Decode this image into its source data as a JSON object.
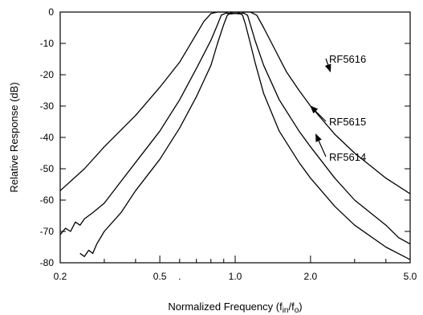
{
  "chart_data": {
    "type": "line",
    "title": "",
    "xlabel": "Normalized Frequency (f",
    "xlabel_sub1": "in",
    "xlabel_mid": "/f",
    "xlabel_sub2": "o",
    "xlabel_end": ")",
    "ylabel": "Relative Response (dB)",
    "x_scale": "log",
    "xlim": [
      0.2,
      5.0
    ],
    "ylim": [
      -80,
      0
    ],
    "grid": false,
    "x_ticks": [
      {
        "value": 0.2,
        "label": "0.2"
      },
      {
        "value": 0.5,
        "label": "0.5"
      },
      {
        "value": 1.0,
        "label": "1.0"
      },
      {
        "value": 2.0,
        "label": "2.0"
      },
      {
        "value": 5.0,
        "label": "5.0"
      }
    ],
    "x_minor_ticks": [
      0.3,
      0.4,
      0.6,
      0.7,
      0.8,
      0.9,
      3,
      4
    ],
    "stray_dot_label": ".",
    "y_ticks": [
      {
        "value": 0,
        "label": "0"
      },
      {
        "value": -10,
        "label": "-10"
      },
      {
        "value": -20,
        "label": "-20"
      },
      {
        "value": -30,
        "label": "-30"
      },
      {
        "value": -40,
        "label": "-40"
      },
      {
        "value": -50,
        "label": "-50"
      },
      {
        "value": -60,
        "label": "-60"
      },
      {
        "value": -70,
        "label": "-70"
      },
      {
        "value": -80,
        "label": "-80"
      }
    ],
    "series": [
      {
        "name": "RF5616",
        "points": [
          [
            0.2,
            -57
          ],
          [
            0.25,
            -50
          ],
          [
            0.3,
            -43
          ],
          [
            0.4,
            -33
          ],
          [
            0.5,
            -24
          ],
          [
            0.6,
            -16
          ],
          [
            0.7,
            -7
          ],
          [
            0.75,
            -3
          ],
          [
            0.8,
            -0.5
          ],
          [
            0.85,
            0
          ],
          [
            1.0,
            0
          ],
          [
            1.15,
            0
          ],
          [
            1.22,
            -1
          ],
          [
            1.3,
            -5
          ],
          [
            1.4,
            -10
          ],
          [
            1.6,
            -19
          ],
          [
            1.8,
            -25
          ],
          [
            2.0,
            -30
          ],
          [
            2.5,
            -39
          ],
          [
            3.0,
            -45
          ],
          [
            4.0,
            -53
          ],
          [
            5.0,
            -58
          ]
        ]
      },
      {
        "name": "RF5615",
        "points": [
          [
            0.2,
            -71
          ],
          [
            0.21,
            -69
          ],
          [
            0.22,
            -70
          ],
          [
            0.23,
            -67
          ],
          [
            0.24,
            -68
          ],
          [
            0.25,
            -66
          ],
          [
            0.27,
            -64
          ],
          [
            0.3,
            -61
          ],
          [
            0.35,
            -54
          ],
          [
            0.4,
            -48
          ],
          [
            0.5,
            -38
          ],
          [
            0.6,
            -28
          ],
          [
            0.7,
            -18
          ],
          [
            0.8,
            -9
          ],
          [
            0.85,
            -4
          ],
          [
            0.88,
            -1
          ],
          [
            0.92,
            -0.3
          ],
          [
            0.96,
            -0.6
          ],
          [
            1.0,
            -0.4
          ],
          [
            1.04,
            -0.6
          ],
          [
            1.08,
            -0.3
          ],
          [
            1.12,
            -1
          ],
          [
            1.15,
            -4
          ],
          [
            1.2,
            -9
          ],
          [
            1.3,
            -17
          ],
          [
            1.5,
            -28
          ],
          [
            1.8,
            -38
          ],
          [
            2.0,
            -43
          ],
          [
            2.5,
            -53
          ],
          [
            3.0,
            -60
          ],
          [
            4.0,
            -68
          ],
          [
            4.5,
            -72
          ],
          [
            5.0,
            -74
          ]
        ]
      },
      {
        "name": "RF5614",
        "points": [
          [
            0.24,
            -77
          ],
          [
            0.25,
            -78
          ],
          [
            0.26,
            -76
          ],
          [
            0.27,
            -77
          ],
          [
            0.28,
            -74
          ],
          [
            0.3,
            -70
          ],
          [
            0.35,
            -64
          ],
          [
            0.4,
            -57
          ],
          [
            0.5,
            -47
          ],
          [
            0.6,
            -37
          ],
          [
            0.7,
            -27
          ],
          [
            0.8,
            -17
          ],
          [
            0.85,
            -10
          ],
          [
            0.9,
            -4
          ],
          [
            0.93,
            -1
          ],
          [
            0.96,
            -0.3
          ],
          [
            1.0,
            -0.5
          ],
          [
            1.04,
            -0.3
          ],
          [
            1.07,
            -1
          ],
          [
            1.1,
            -4
          ],
          [
            1.15,
            -10
          ],
          [
            1.2,
            -16
          ],
          [
            1.3,
            -26
          ],
          [
            1.5,
            -38
          ],
          [
            1.8,
            -48
          ],
          [
            2.0,
            -53
          ],
          [
            2.5,
            -62
          ],
          [
            3.0,
            -68
          ],
          [
            4.0,
            -75
          ],
          [
            5.0,
            -79
          ]
        ]
      }
    ],
    "annotations": [
      {
        "text": "RF5616",
        "target": [
          2.4,
          -19
        ]
      },
      {
        "text": "RF5615",
        "target": [
          2.0,
          -30
        ]
      },
      {
        "text": "RF5614",
        "target": [
          2.1,
          -39
        ]
      }
    ]
  }
}
